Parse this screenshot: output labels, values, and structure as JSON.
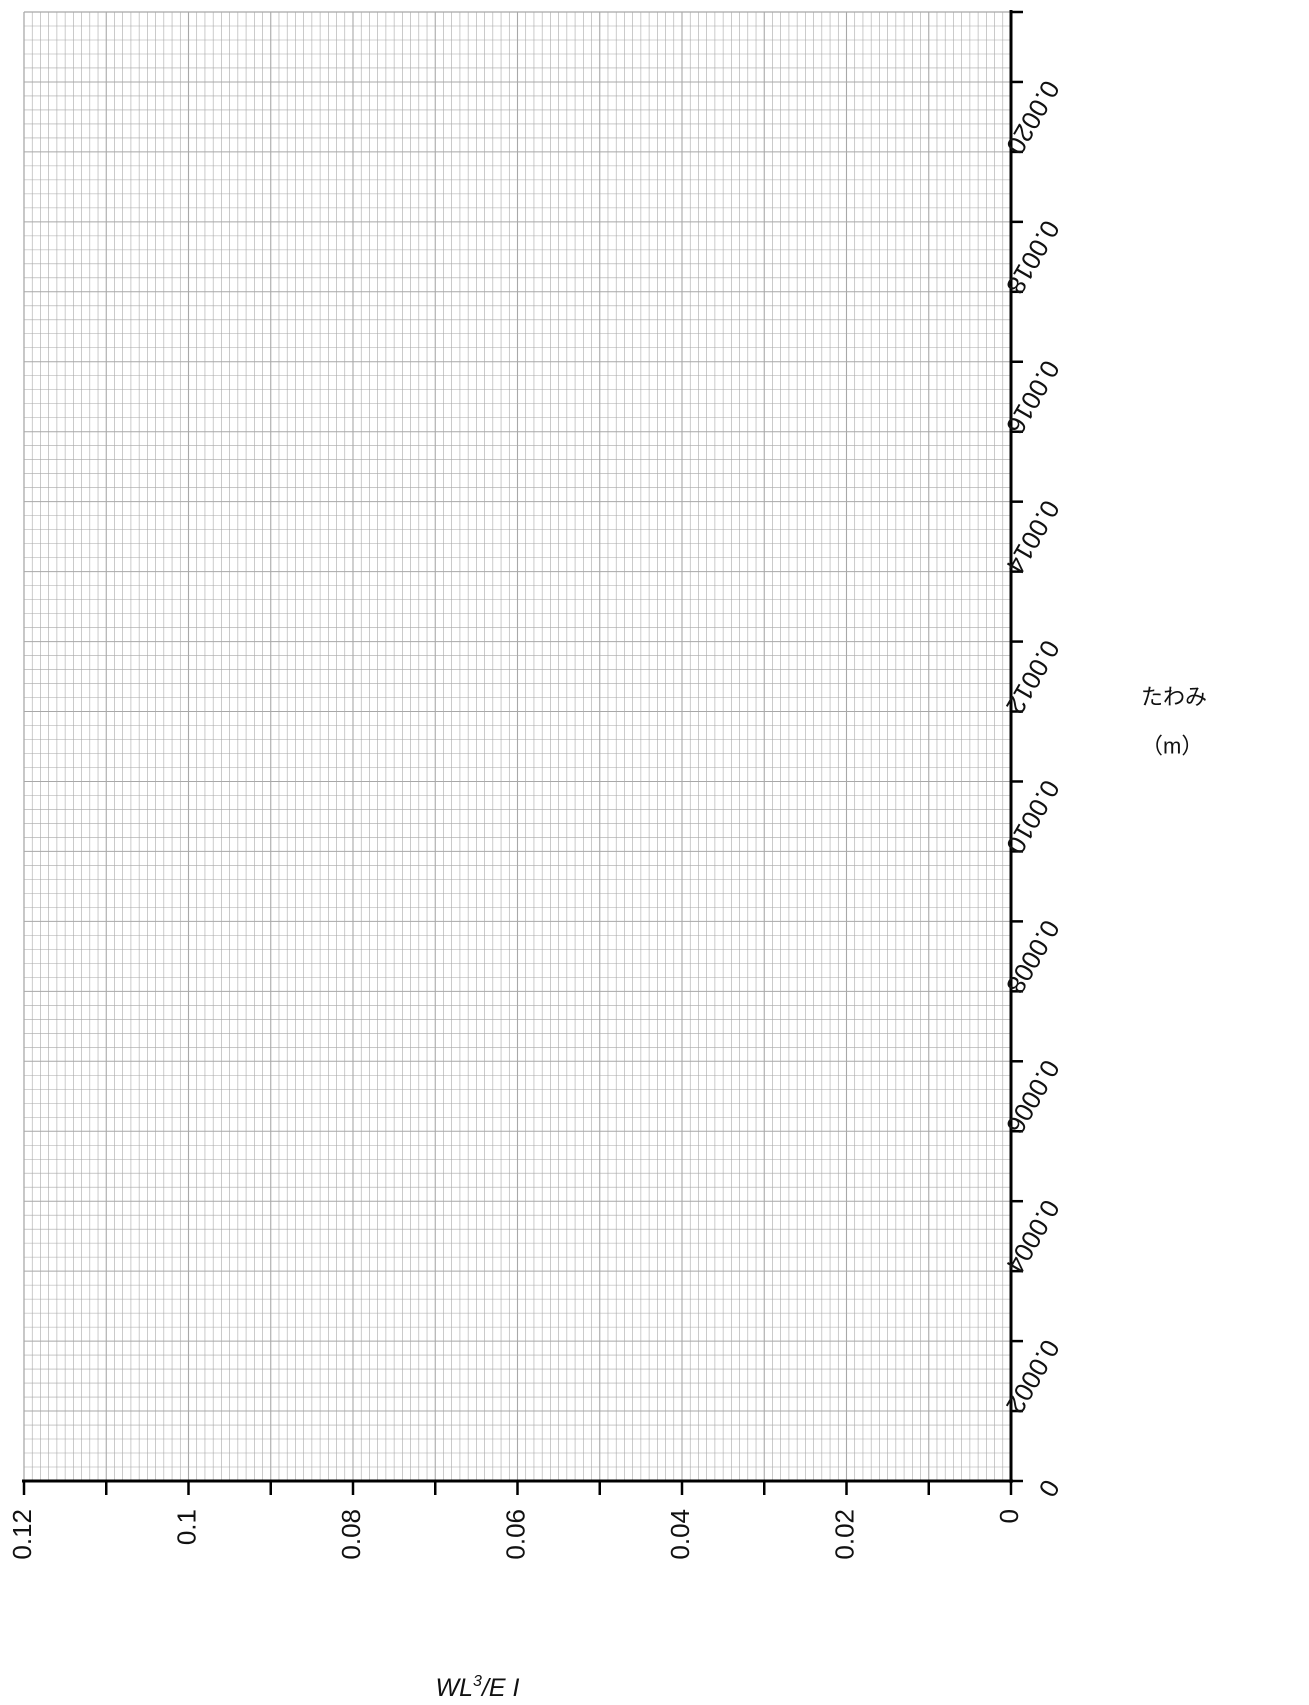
{
  "chart_data": {
    "type": "line",
    "title": "",
    "xlabel": {
      "pre": "WL",
      "sup": "3",
      "post": "/E I"
    },
    "ylabel": {
      "line1": "たわみ",
      "line2": "（m）"
    },
    "xlim": [
      0,
      0.12
    ],
    "ylim": [
      0,
      0.0021
    ],
    "x_axis_reversed": true,
    "x_ticks": [
      {
        "value": 0.12,
        "label": "0.12"
      },
      {
        "value": 0.1,
        "label": "0.1"
      },
      {
        "value": 0.08,
        "label": "0.08"
      },
      {
        "value": 0.06,
        "label": "0.06"
      },
      {
        "value": 0.04,
        "label": "0.04"
      },
      {
        "value": 0.02,
        "label": "0.02"
      },
      {
        "value": 0,
        "label": "0"
      }
    ],
    "y_ticks": [
      {
        "value": 0,
        "label": "0"
      },
      {
        "value": 0.0002,
        "label": "0.0002"
      },
      {
        "value": 0.0004,
        "label": "0.0004"
      },
      {
        "value": 0.0006,
        "label": "0.0006"
      },
      {
        "value": 0.0008,
        "label": "0.0008"
      },
      {
        "value": 0.001,
        "label": "0.0010"
      },
      {
        "value": 0.0012,
        "label": "0.0012"
      },
      {
        "value": 0.0014,
        "label": "0.0014"
      },
      {
        "value": 0.0016,
        "label": "0.0016"
      },
      {
        "value": 0.0018,
        "label": "0.0018"
      },
      {
        "value": 0.002,
        "label": "0.0020"
      }
    ],
    "grid": true,
    "grid_minor_x_step": 0.001,
    "grid_minor_y_step": 2e-05,
    "series": [],
    "colors": {
      "grid": "#a8a8a8",
      "axis": "#000000",
      "text": "#111111"
    }
  }
}
